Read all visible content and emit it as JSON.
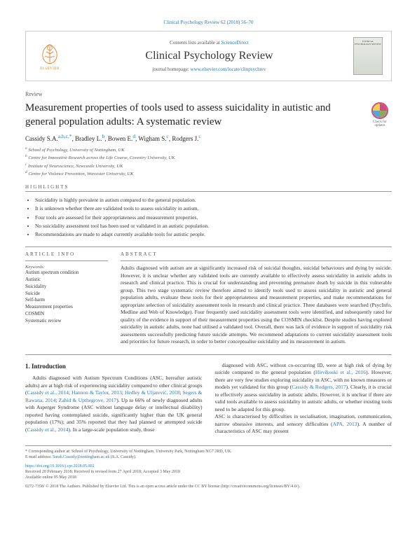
{
  "header_citation": "Clinical Psychology Review 62 (2018) 56–70",
  "masthead": {
    "contents_prefix": "Contents lists available at ",
    "contents_link": "ScienceDirect",
    "journal": "Clinical Psychology Review",
    "homepage_prefix": "journal homepage: ",
    "homepage_link": "www.elsevier.com/locate/clinpsychrev",
    "publisher": "ELSEVIER",
    "cover_title": "CLINICAL PSYCHOLOGY REVIEW"
  },
  "article_type": "Review",
  "title": "Measurement properties of tools used to assess suicidality in autistic and general population adults: A systematic review",
  "check_label": "Check for updates",
  "authors_html": "Cassidy S.A.",
  "authors": [
    {
      "name": "Cassidy S.A.",
      "sup": "a,b,c,*"
    },
    {
      "name": "Bradley L.",
      "sup": "b"
    },
    {
      "name": "Bowen E.",
      "sup": "d"
    },
    {
      "name": "Wigham S.",
      "sup": "c"
    },
    {
      "name": "Rodgers J.",
      "sup": "c"
    }
  ],
  "affiliations": [
    "a School of Psychology, University of Nottingham, UK",
    "b Centre for Innovative Research across the Life Course, Coventry University, UK",
    "c Institute of Neuroscience, Newcastle University, UK",
    "d Centre for Violence Prevention, Worcester University, UK"
  ],
  "highlights_label": "HIGHLIGHTS",
  "highlights": [
    "Suicidality is highly prevalent in autism compared to the general population.",
    "It is unknown whether there are validated tools to assess suicidality in autism.",
    "Four tools are assessed for their appropriateness and measurement properties.",
    "No suicidality assessment tool has been used or validated in an autistic population.",
    "Recommendations are made to adapt currently available tools for autistic people."
  ],
  "article_info_label": "ARTICLE INFO",
  "keywords_label": "Keywords:",
  "keywords": [
    "Autism spectrum condition",
    "Autistic",
    "Suicidality",
    "Suicide",
    "Self-harm",
    "Measurement properties",
    "COSMIN",
    "Systematic review"
  ],
  "abstract_label": "ABSTRACT",
  "abstract": "Adults diagnosed with autism are at significantly increased risk of suicidal thoughts, suicidal behaviours and dying by suicide. However, it is unclear whether any validated tools are currently available to effectively assess suicidality in autistic adults in research and clinical practice. This is crucial for understanding and preventing premature death by suicide in this vulnerable group. This two stage systematic review therefore aimed to identify tools used to assess suicidality in autistic and general population adults, evaluate these tools for their appropriateness and measurement properties, and make recommendations for appropriate selection of suicidality assessment tools in research and clinical practice. Three databases were searched (PsycInfo, Medline and Web of Knowledge). Four frequently used suicidality assessment tools were identified, and subsequently rated for quality of the evidence in support of their measurement properties using the COSMIN checklist. Despite studies having explored suicidality in autistic adults, none had utilised a validated tool. Overall, there was lack of evidence in support of suicidality risk assessments successfully predicting future suicide attempts. We recommend adaptations to current suicidality assessment tools and priorities for future research, in order to better conceptualise suicidality and its measurement in autism.",
  "intro_heading": "1. Introduction",
  "intro_col1": "Adults diagnosed with Autism Spectrum Conditions (ASC, hereafter autistic adults) are at high risk of experiencing suicidality compared to other clinical groups (<span class='cite'>Cassidy et al., 2014</span>; <span class='cite'>Hannon & Taylor, 2013</span>; <span class='cite'>Hedley & Uljarević, 2018</span>; <span class='cite'>Segers & Rawana, 2014</span>; <span class='cite'>Zahid & Upthegrove, 2017</span>). Up to 66% of newly diagnosed adults with Asperger Syndrome (ASC without language delay or intellectual disability) reported having contemplated suicide, significantly higher than the UK general population (17%); and 35% reported that they had planned or attempted suicide (<span class='cite'>Cassidy et al., 2014</span>). In a large-scale population study, those",
  "intro_col2": "diagnosed with ASC, without co-occurring ID, were at high risk of dying by suicide compared to the general population (<span class='cite'>Hirvikoski et al., 2016</span>). However, there are very few studies exploring suicidality in ASC, with no known measures or models yet validated for this group (<span class='cite'>Cassidy & Rodgers, 2017</span>). Clearly, it is crucial to effectively assess suicidality in autistic adults. However, it is unclear if there are valid tools available to assess suicidality in autistic adults, or whether existing tools need to be adapted for this group.<br>ASC is characterised by difficulties in socialisation, imagination, communication, narrow obsessive interests, and sensory difficulties (<span class='cite'>APA, 2013</span>). A number of characteristics of ASC may present",
  "footer": {
    "corresponding": "* Corresponding author at: School of Psychology, University of Nottingham, University Park, Nottingham NG7 2RD, UK.",
    "email_prefix": "E-mail address: ",
    "email": "Sarah.Cassidy@nottingham.ac.uk",
    "email_suffix": " (S.A. Cassidy).",
    "doi": "https://doi.org/10.1016/j.cpr.2018.05.002",
    "received": "Received 20 February 2018; Received in revised form 27 April 2018; Accepted 3 May 2018",
    "available": "Available online 05 May 2018",
    "issn": "0272-7358/ © 2018 The Authors. Published by Elsevier Ltd. This is an open access article under the CC BY license (http://creativecommons.org/licenses/BY/4.0/)."
  }
}
